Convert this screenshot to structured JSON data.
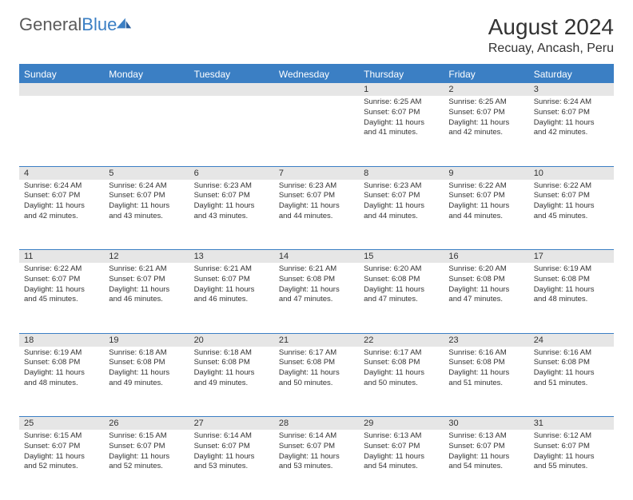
{
  "logo": {
    "word1": "General",
    "word2": "Blue"
  },
  "title": "August 2024",
  "location": "Recuay, Ancash, Peru",
  "colors": {
    "header_bg": "#3b7fc4",
    "header_text": "#ffffff",
    "daynum_bg": "#e6e6e6",
    "border": "#3b7fc4",
    "text": "#333333",
    "logo_gray": "#5a5a5a",
    "logo_blue": "#3b7fc4",
    "page_bg": "#ffffff"
  },
  "dayHeaders": [
    "Sunday",
    "Monday",
    "Tuesday",
    "Wednesday",
    "Thursday",
    "Friday",
    "Saturday"
  ],
  "weeks": [
    [
      {
        "n": "",
        "sunrise": "",
        "sunset": "",
        "daylight": ""
      },
      {
        "n": "",
        "sunrise": "",
        "sunset": "",
        "daylight": ""
      },
      {
        "n": "",
        "sunrise": "",
        "sunset": "",
        "daylight": ""
      },
      {
        "n": "",
        "sunrise": "",
        "sunset": "",
        "daylight": ""
      },
      {
        "n": "1",
        "sunrise": "6:25 AM",
        "sunset": "6:07 PM",
        "daylight": "11 hours and 41 minutes."
      },
      {
        "n": "2",
        "sunrise": "6:25 AM",
        "sunset": "6:07 PM",
        "daylight": "11 hours and 42 minutes."
      },
      {
        "n": "3",
        "sunrise": "6:24 AM",
        "sunset": "6:07 PM",
        "daylight": "11 hours and 42 minutes."
      }
    ],
    [
      {
        "n": "4",
        "sunrise": "6:24 AM",
        "sunset": "6:07 PM",
        "daylight": "11 hours and 42 minutes."
      },
      {
        "n": "5",
        "sunrise": "6:24 AM",
        "sunset": "6:07 PM",
        "daylight": "11 hours and 43 minutes."
      },
      {
        "n": "6",
        "sunrise": "6:23 AM",
        "sunset": "6:07 PM",
        "daylight": "11 hours and 43 minutes."
      },
      {
        "n": "7",
        "sunrise": "6:23 AM",
        "sunset": "6:07 PM",
        "daylight": "11 hours and 44 minutes."
      },
      {
        "n": "8",
        "sunrise": "6:23 AM",
        "sunset": "6:07 PM",
        "daylight": "11 hours and 44 minutes."
      },
      {
        "n": "9",
        "sunrise": "6:22 AM",
        "sunset": "6:07 PM",
        "daylight": "11 hours and 44 minutes."
      },
      {
        "n": "10",
        "sunrise": "6:22 AM",
        "sunset": "6:07 PM",
        "daylight": "11 hours and 45 minutes."
      }
    ],
    [
      {
        "n": "11",
        "sunrise": "6:22 AM",
        "sunset": "6:07 PM",
        "daylight": "11 hours and 45 minutes."
      },
      {
        "n": "12",
        "sunrise": "6:21 AM",
        "sunset": "6:07 PM",
        "daylight": "11 hours and 46 minutes."
      },
      {
        "n": "13",
        "sunrise": "6:21 AM",
        "sunset": "6:07 PM",
        "daylight": "11 hours and 46 minutes."
      },
      {
        "n": "14",
        "sunrise": "6:21 AM",
        "sunset": "6:08 PM",
        "daylight": "11 hours and 47 minutes."
      },
      {
        "n": "15",
        "sunrise": "6:20 AM",
        "sunset": "6:08 PM",
        "daylight": "11 hours and 47 minutes."
      },
      {
        "n": "16",
        "sunrise": "6:20 AM",
        "sunset": "6:08 PM",
        "daylight": "11 hours and 47 minutes."
      },
      {
        "n": "17",
        "sunrise": "6:19 AM",
        "sunset": "6:08 PM",
        "daylight": "11 hours and 48 minutes."
      }
    ],
    [
      {
        "n": "18",
        "sunrise": "6:19 AM",
        "sunset": "6:08 PM",
        "daylight": "11 hours and 48 minutes."
      },
      {
        "n": "19",
        "sunrise": "6:18 AM",
        "sunset": "6:08 PM",
        "daylight": "11 hours and 49 minutes."
      },
      {
        "n": "20",
        "sunrise": "6:18 AM",
        "sunset": "6:08 PM",
        "daylight": "11 hours and 49 minutes."
      },
      {
        "n": "21",
        "sunrise": "6:17 AM",
        "sunset": "6:08 PM",
        "daylight": "11 hours and 50 minutes."
      },
      {
        "n": "22",
        "sunrise": "6:17 AM",
        "sunset": "6:08 PM",
        "daylight": "11 hours and 50 minutes."
      },
      {
        "n": "23",
        "sunrise": "6:16 AM",
        "sunset": "6:08 PM",
        "daylight": "11 hours and 51 minutes."
      },
      {
        "n": "24",
        "sunrise": "6:16 AM",
        "sunset": "6:08 PM",
        "daylight": "11 hours and 51 minutes."
      }
    ],
    [
      {
        "n": "25",
        "sunrise": "6:15 AM",
        "sunset": "6:07 PM",
        "daylight": "11 hours and 52 minutes."
      },
      {
        "n": "26",
        "sunrise": "6:15 AM",
        "sunset": "6:07 PM",
        "daylight": "11 hours and 52 minutes."
      },
      {
        "n": "27",
        "sunrise": "6:14 AM",
        "sunset": "6:07 PM",
        "daylight": "11 hours and 53 minutes."
      },
      {
        "n": "28",
        "sunrise": "6:14 AM",
        "sunset": "6:07 PM",
        "daylight": "11 hours and 53 minutes."
      },
      {
        "n": "29",
        "sunrise": "6:13 AM",
        "sunset": "6:07 PM",
        "daylight": "11 hours and 54 minutes."
      },
      {
        "n": "30",
        "sunrise": "6:13 AM",
        "sunset": "6:07 PM",
        "daylight": "11 hours and 54 minutes."
      },
      {
        "n": "31",
        "sunrise": "6:12 AM",
        "sunset": "6:07 PM",
        "daylight": "11 hours and 55 minutes."
      }
    ]
  ],
  "labels": {
    "sunrise": "Sunrise:",
    "sunset": "Sunset:",
    "daylight": "Daylight:"
  }
}
